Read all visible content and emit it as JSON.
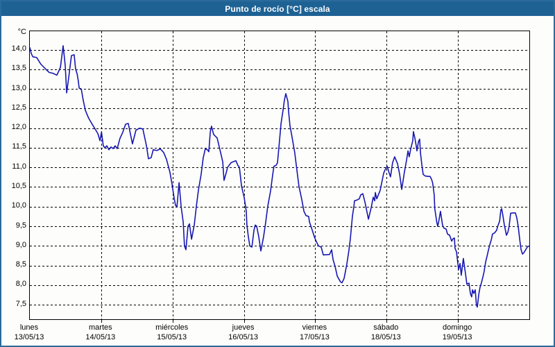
{
  "header": {
    "title": "Punto de rocío [°C] escala"
  },
  "colors": {
    "titlebar_bg": "#1e6294",
    "titlebar_text": "#ffffff",
    "window_border": "#2a6b9b",
    "plot_border": "#000000",
    "grid": "#000000",
    "series_line": "#1616b2",
    "background": "#fdfdfb"
  },
  "chart_data": {
    "type": "line",
    "title": "Punto de rocío [°C] escala",
    "y_unit": "°C",
    "ylabel": "Punto de rocío [°C]",
    "xlabel": "",
    "grid": true,
    "legend": "none",
    "ylim": [
      7.13,
      14.47
    ],
    "xlim_hours": [
      0,
      168
    ],
    "y_ticks": [
      14.0,
      13.5,
      13.0,
      12.5,
      12.0,
      11.5,
      11.0,
      10.5,
      10.0,
      9.5,
      9.0,
      8.5,
      8.0,
      7.5
    ],
    "days": [
      {
        "name": "lunes",
        "date": "13/05/13"
      },
      {
        "name": "martes",
        "date": "14/05/13"
      },
      {
        "name": "miércoles",
        "date": "15/05/13"
      },
      {
        "name": "jueves",
        "date": "16/05/13"
      },
      {
        "name": "viernes",
        "date": "17/05/13"
      },
      {
        "name": "sábado",
        "date": "18/05/13"
      },
      {
        "name": "domingo",
        "date": "19/05/13"
      }
    ],
    "series_name": "Punto de rocío",
    "x_hours": [
      0,
      0.5,
      1,
      2.3,
      3.7,
      5.4,
      6.5,
      7.7,
      9.1,
      10.3,
      11.2,
      11.9,
      12.4,
      13.1,
      14,
      14.9,
      15.4,
      15.9,
      16.3,
      16.6,
      17.3,
      18,
      18.7,
      19.8,
      21.2,
      22.2,
      22.9,
      23.6,
      24.1,
      24.7,
      25.2,
      25.9,
      26.6,
      27.3,
      28,
      28.7,
      29.4,
      30.3,
      31.3,
      32.2,
      33.1,
      34.5,
      35.7,
      36.9,
      38,
      39.2,
      39.9,
      40.8,
      41.5,
      42.7,
      43.9,
      45,
      46,
      47.1,
      47.8,
      48.5,
      49,
      49.5,
      50.2,
      50.9,
      51.6,
      52,
      52.5,
      53.2,
      53.7,
      54.4,
      55.3,
      56,
      56.7,
      57.6,
      58.3,
      59,
      59.7,
      60.2,
      60.7,
      61.1,
      61.8,
      63,
      64.2,
      64.9,
      65.3,
      66,
      66.5,
      67.7,
      68.6,
      69.3,
      70,
      70.5,
      71.2,
      71.9,
      72.1,
      72.8,
      73,
      73.5,
      74,
      74.7,
      75.4,
      75.8,
      76.3,
      77,
      77.7,
      78.6,
      79.3,
      80,
      81,
      81.7,
      82.1,
      82.8,
      83.3,
      84,
      84.5,
      85.2,
      85.6,
      86.1,
      86.8,
      87,
      87.5,
      88.2,
      89.1,
      89.8,
      90.5,
      91.5,
      92.2,
      92.9,
      93.8,
      94,
      95,
      95.7,
      96.3,
      97.1,
      98,
      98.7,
      100.8,
      101.5,
      102,
      102.7,
      103.4,
      104.5,
      105,
      105.7,
      106.6,
      107.3,
      107.8,
      108.5,
      109,
      109.2,
      110.1,
      110.8,
      111.3,
      112,
      112.7,
      113.9,
      114.8,
      115.5,
      116,
      116.2,
      116.7,
      117.1,
      117.8,
      118.3,
      119,
      119.5,
      120.2,
      120.9,
      121.3,
      122,
      122.7,
      123.7,
      124.4,
      125.1,
      126,
      126.7,
      127.2,
      127.6,
      128.1,
      128.8,
      129,
      129.5,
      130,
      130.2,
      130.7,
      131.1,
      131.4,
      131.8,
      132.3,
      133,
      133.9,
      134.6,
      135.1,
      135.5,
      136,
      136.2,
      136.9,
      137.2,
      137.6,
      138.1,
      138.8,
      139.3,
      140,
      140.5,
      141.2,
      141.9,
      142.3,
      142.8,
      143,
      143.5,
      144.2,
      144.7,
      145.1,
      145.8,
      146.5,
      147,
      147.7,
      148.2,
      148.6,
      148.9,
      149.3,
      149.8,
      150.2,
      150.5,
      151,
      151.4,
      151.9,
      152.4,
      152.8,
      153.3,
      153.8,
      154.2,
      154.7,
      155.2,
      155.6,
      156.3,
      157,
      157.5,
      158,
      158.4,
      158.7,
      159.1,
      159.6,
      160.3,
      160.8,
      161.2,
      161.7,
      162.4,
      163.3,
      163.8,
      164.3,
      164.7,
      165.2,
      165.7,
      166.1,
      166.6,
      167.3,
      168
    ],
    "values": [
      14.05,
      13.9,
      13.82,
      13.8,
      13.63,
      13.5,
      13.42,
      13.4,
      13.35,
      13.55,
      14.1,
      13.6,
      12.9,
      13.3,
      13.85,
      13.87,
      13.5,
      13.39,
      13.2,
      13.02,
      13,
      12.7,
      12.45,
      12.25,
      12.07,
      11.95,
      11.86,
      11.68,
      11.9,
      11.55,
      11.5,
      11.55,
      11.45,
      11.52,
      11.48,
      11.55,
      11.48,
      11.74,
      11.9,
      12.1,
      12.12,
      11.6,
      11.95,
      12,
      11.98,
      11.56,
      11.22,
      11.25,
      11.45,
      11.43,
      11.47,
      11.38,
      11.2,
      10.88,
      10.58,
      10.23,
      10.03,
      10,
      10.61,
      10,
      9.6,
      9,
      8.9,
      9.5,
      9.56,
      9.17,
      9.53,
      10,
      10.42,
      10.82,
      11.24,
      11.47,
      11.45,
      11.4,
      11.9,
      12.05,
      11.84,
      11.75,
      11.37,
      11.14,
      10.67,
      10.85,
      11,
      11.12,
      11.15,
      11.17,
      11.05,
      11,
      10.53,
      10.3,
      10.23,
      9.88,
      9.53,
      9.23,
      9,
      8.97,
      9.4,
      9.53,
      9.5,
      9.23,
      8.87,
      9.23,
      9.59,
      10,
      10.41,
      10.82,
      11.03,
      11.05,
      11.12,
      11.7,
      12.12,
      12.47,
      12.71,
      12.88,
      12.68,
      12.44,
      12.06,
      11.77,
      11.37,
      10.94,
      10.52,
      10.17,
      9.88,
      9.77,
      9.75,
      9.62,
      9.4,
      9.23,
      9.12,
      9,
      8.97,
      8.77,
      8.78,
      8.9,
      8.65,
      8.47,
      8.23,
      8.08,
      8.06,
      8.17,
      8.53,
      8.88,
      9.18,
      9.76,
      10,
      10.15,
      10.17,
      10.2,
      10.3,
      10.33,
      10.12,
      9.68,
      9.97,
      10.24,
      10.15,
      10.36,
      10.2,
      10.28,
      10.41,
      10.59,
      10.85,
      10.94,
      11.03,
      10.85,
      10.76,
      11.12,
      11.27,
      11.09,
      10.82,
      10.44,
      10.89,
      11.18,
      11.42,
      11.27,
      11.47,
      11.68,
      11.91,
      11.75,
      11.53,
      11.42,
      11.65,
      11.72,
      11.37,
      11.09,
      10.82,
      10.78,
      10.77,
      10.77,
      10.7,
      10.6,
      10.3,
      9.95,
      9.59,
      9.5,
      9.65,
      9.88,
      9.53,
      9.45,
      9.43,
      9.3,
      9.27,
      9.12,
      9.18,
      9.2,
      8.94,
      8.85,
      8.4,
      8.55,
      8.25,
      8.68,
      8.3,
      8.02,
      8.05,
      7.78,
      7.7,
      7.88,
      7.79,
      7.88,
      7.5,
      7.44,
      7.76,
      7.94,
      8.06,
      8.21,
      8.35,
      8.59,
      8.74,
      8.88,
      9.03,
      9.15,
      9.3,
      9.33,
      9.4,
      9.53,
      9.62,
      9.91,
      9.95,
      9.77,
      9.53,
      9.27,
      9.35,
      9.5,
      9.83,
      9.84,
      9.84,
      9.71,
      9.48,
      9.2,
      8.91,
      8.79,
      8.82,
      8.88,
      8.97,
      9
    ]
  }
}
